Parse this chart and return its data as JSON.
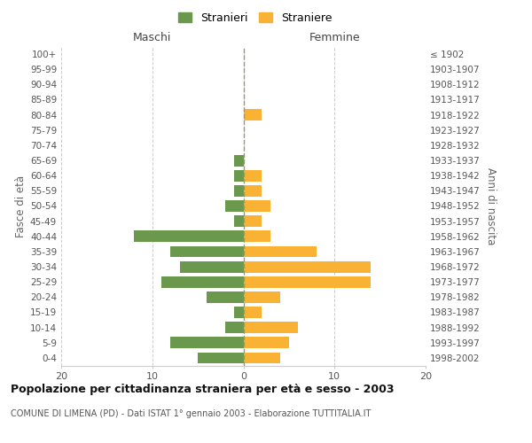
{
  "age_groups": [
    "0-4",
    "5-9",
    "10-14",
    "15-19",
    "20-24",
    "25-29",
    "30-34",
    "35-39",
    "40-44",
    "45-49",
    "50-54",
    "55-59",
    "60-64",
    "65-69",
    "70-74",
    "75-79",
    "80-84",
    "85-89",
    "90-94",
    "95-99",
    "100+"
  ],
  "birth_years": [
    "1998-2002",
    "1993-1997",
    "1988-1992",
    "1983-1987",
    "1978-1982",
    "1973-1977",
    "1968-1972",
    "1963-1967",
    "1958-1962",
    "1953-1957",
    "1948-1952",
    "1943-1947",
    "1938-1942",
    "1933-1937",
    "1928-1932",
    "1923-1927",
    "1918-1922",
    "1913-1917",
    "1908-1912",
    "1903-1907",
    "≤ 1902"
  ],
  "maschi": [
    5,
    8,
    2,
    1,
    4,
    9,
    7,
    8,
    12,
    1,
    2,
    1,
    1,
    1,
    0,
    0,
    0,
    0,
    0,
    0,
    0
  ],
  "femmine": [
    4,
    5,
    6,
    2,
    4,
    14,
    14,
    8,
    3,
    2,
    3,
    2,
    2,
    0,
    0,
    0,
    2,
    0,
    0,
    0,
    0
  ],
  "maschi_color": "#6a994e",
  "femmine_color": "#f9b233",
  "background_color": "#ffffff",
  "grid_color": "#cccccc",
  "title": "Popolazione per cittadinanza straniera per età e sesso - 2003",
  "subtitle": "COMUNE DI LIMENA (PD) - Dati ISTAT 1° gennaio 2003 - Elaborazione TUTTITALIA.IT",
  "ylabel_left": "Fasce di età",
  "ylabel_right": "Anni di nascita",
  "xlabel_left": "Maschi",
  "xlabel_right": "Femmine",
  "legend_maschi": "Stranieri",
  "legend_femmine": "Straniere",
  "xlim": 20
}
